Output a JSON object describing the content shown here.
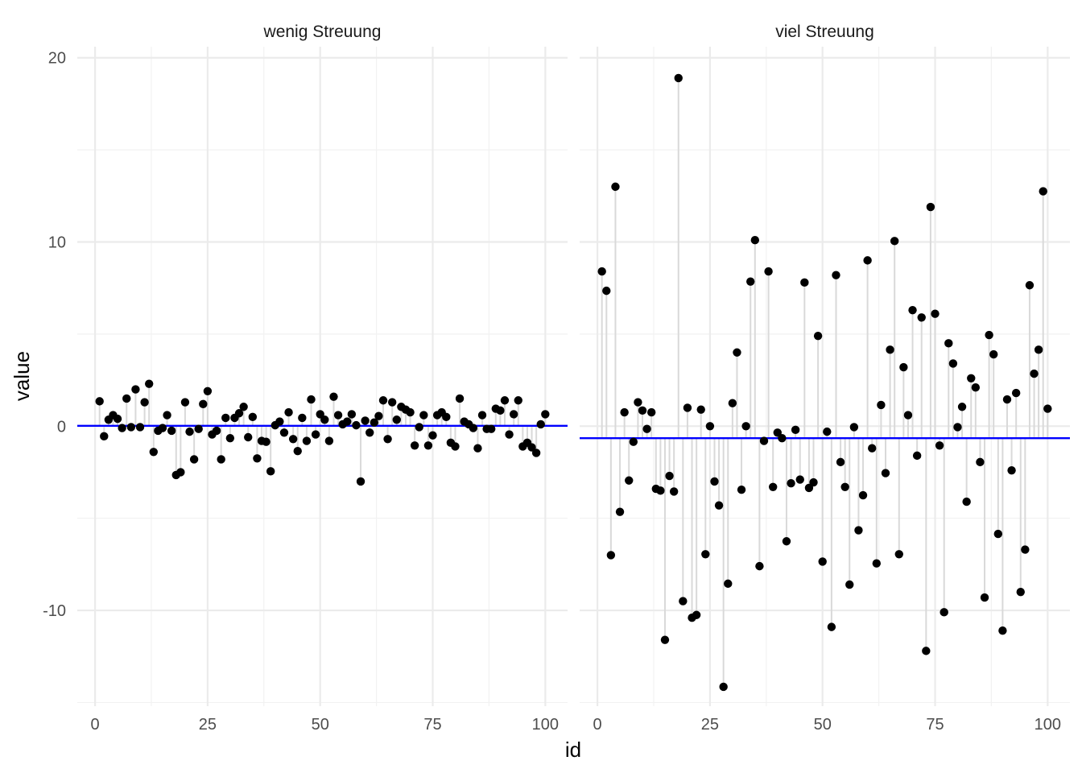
{
  "chart_data": {
    "type": "scatter",
    "xlabel": "id",
    "ylabel": "value",
    "xlim": [
      -3.95,
      104.95
    ],
    "ylim": [
      -15.2,
      20.6
    ],
    "x_ticks": [
      0,
      25,
      50,
      75,
      100
    ],
    "y_ticks": [
      -10,
      0,
      10,
      20
    ],
    "x_tick_labels": [
      "0",
      "25",
      "50",
      "75",
      "100"
    ],
    "y_tick_labels": [
      "-10",
      "0",
      "10",
      "20"
    ],
    "grid": true,
    "colors": {
      "points": "#000000",
      "segments": "#d9d9d9",
      "mean_line": "#0000ff",
      "grid": "#ebebeb"
    },
    "panels": [
      {
        "title": "wenig Streuung",
        "mean": 0.02,
        "values": [
          1.35,
          -0.55,
          0.35,
          0.6,
          0.4,
          -0.1,
          1.5,
          -0.05,
          2.0,
          -0.05,
          1.3,
          2.3,
          -1.4,
          -0.25,
          -0.1,
          0.6,
          -0.25,
          -2.65,
          -2.5,
          1.3,
          -0.3,
          -1.8,
          -0.15,
          1.2,
          1.9,
          -0.45,
          -0.25,
          -1.8,
          0.45,
          -0.65,
          0.45,
          0.7,
          1.05,
          -0.6,
          0.5,
          -1.75,
          -0.8,
          -0.85,
          -2.45,
          0.05,
          0.25,
          -0.35,
          0.75,
          -0.7,
          -1.35,
          0.45,
          -0.8,
          1.45,
          -0.45,
          0.65,
          0.35,
          -0.8,
          1.6,
          0.6,
          0.1,
          0.25,
          0.65,
          0.05,
          -3.0,
          0.3,
          -0.35,
          0.2,
          0.55,
          1.4,
          -0.7,
          1.3,
          0.35,
          1.05,
          0.9,
          0.75,
          -1.05,
          -0.05,
          0.6,
          -1.05,
          -0.5,
          0.6,
          0.75,
          0.5,
          -0.9,
          -1.1,
          1.5,
          0.25,
          0.1,
          -0.1,
          -1.2,
          0.6,
          -0.15,
          -0.15,
          0.95,
          0.85,
          1.4,
          -0.45,
          0.65,
          1.4,
          -1.1,
          -0.9,
          -1.15,
          -1.45,
          0.1,
          0.65
        ]
      },
      {
        "title": "viel Streuung",
        "mean": -0.65,
        "values": [
          8.4,
          7.35,
          -7.0,
          13.0,
          -4.65,
          0.75,
          -2.95,
          -0.85,
          1.3,
          0.85,
          -0.15,
          0.75,
          -3.4,
          -3.5,
          -11.6,
          -2.7,
          -3.55,
          18.9,
          -9.5,
          1.0,
          -10.4,
          -10.25,
          0.9,
          -6.95,
          0.0,
          -3.0,
          -4.3,
          -14.15,
          -8.55,
          1.25,
          4.0,
          -3.45,
          0.0,
          7.85,
          10.1,
          -7.6,
          -0.8,
          8.4,
          -3.3,
          -0.35,
          -0.65,
          -6.25,
          -3.1,
          -0.2,
          -2.9,
          7.8,
          -3.35,
          -3.05,
          4.9,
          -7.35,
          -0.3,
          -10.9,
          8.2,
          -1.95,
          -3.3,
          -8.6,
          -0.05,
          -5.65,
          -3.75,
          9.0,
          -1.2,
          -7.45,
          1.15,
          -2.55,
          4.15,
          10.05,
          -6.95,
          3.2,
          0.6,
          6.3,
          -1.6,
          5.9,
          -12.2,
          11.9,
          6.1,
          -1.05,
          -10.1,
          4.5,
          3.4,
          -0.05,
          1.05,
          -4.1,
          2.6,
          2.1,
          -1.95,
          -9.3,
          4.95,
          3.9,
          -5.85,
          -11.1,
          1.45,
          -2.4,
          1.8,
          -9.0,
          -6.7,
          7.65,
          2.85,
          4.15,
          12.75,
          0.95
        ]
      }
    ]
  }
}
